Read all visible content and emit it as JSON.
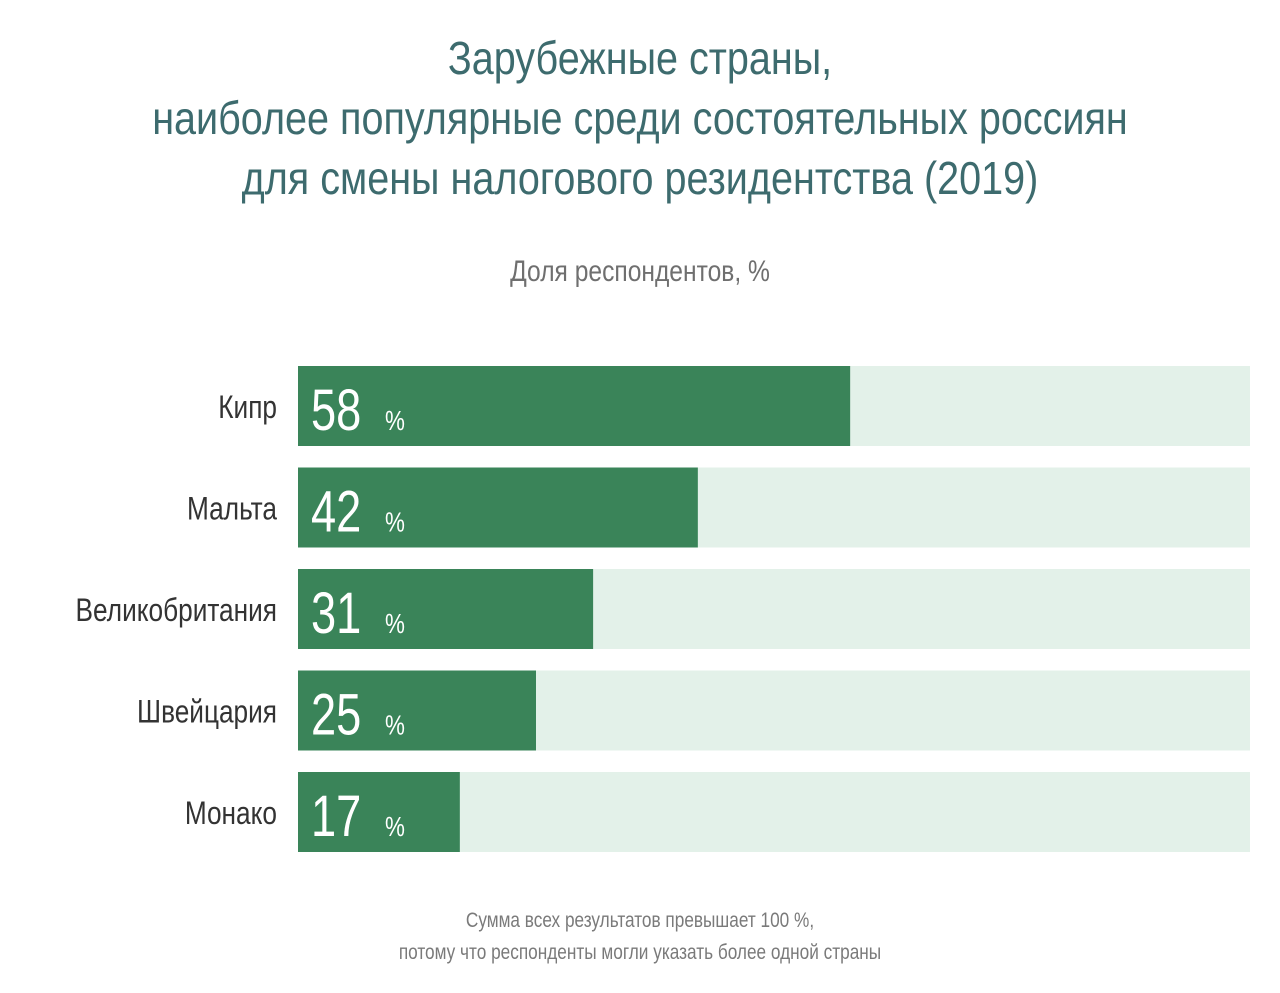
{
  "title_lines": [
    "Зарубежные страны,",
    "наиболее популярные среди состоятельных россиян",
    "для смены налогового резидентства (2019)"
  ],
  "subtitle": "Доля респондентов, %",
  "footnote_lines": [
    "Сумма всех результатов превышает 100 %,",
    "потому что респонденты могли указать более одной страны"
  ],
  "colors": {
    "bar": "#3a8459",
    "track": "#e3f1e9",
    "title": "#3d6b6e"
  },
  "chart_data": {
    "type": "bar",
    "orientation": "horizontal",
    "title": "Зарубежные страны, наиболее популярные среди состоятельных россиян для смены налогового резидентства (2019)",
    "subtitle": "Доля респондентов, %",
    "categories": [
      "Кипр",
      "Мальта",
      "Великобритания",
      "Швейцария",
      "Монако"
    ],
    "values": [
      58,
      42,
      31,
      25,
      17
    ],
    "value_suffix": "%",
    "xlim": [
      0,
      100
    ],
    "grid": false,
    "legend": "none"
  }
}
